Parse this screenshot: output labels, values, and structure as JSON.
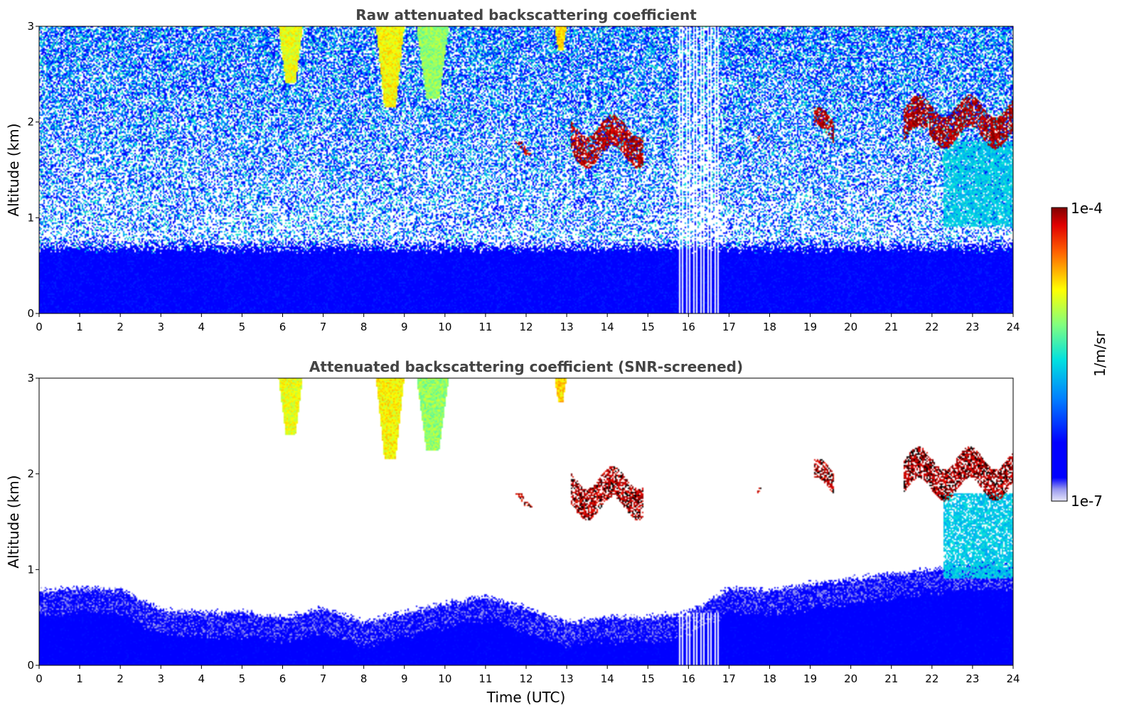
{
  "chart_data": [
    {
      "type": "heatmap",
      "title": "Raw attenuated backscattering coefficient",
      "xlabel": "",
      "ylabel": "Altitude (km)",
      "xlim": [
        0,
        24
      ],
      "ylim": [
        0,
        3
      ],
      "xticks": [
        "0",
        "1",
        "2",
        "3",
        "4",
        "5",
        "6",
        "7",
        "8",
        "9",
        "10",
        "11",
        "12",
        "13",
        "14",
        "15",
        "16",
        "17",
        "18",
        "19",
        "20",
        "21",
        "22",
        "23",
        "24"
      ],
      "yticks": [
        "0",
        "1",
        "2",
        "3"
      ],
      "grid": false,
      "screened": false,
      "features": [
        {
          "kind": "boundary_layer",
          "x": [
            0,
            24
          ],
          "top": 0.7,
          "level": 0.15
        },
        {
          "kind": "noise_field",
          "x": [
            0,
            24
          ],
          "y": [
            0.7,
            3.0
          ],
          "level": 0.3
        },
        {
          "kind": "plume",
          "x": [
            5.9,
            6.5
          ],
          "y": [
            2.4,
            3.0
          ],
          "level": 0.7
        },
        {
          "kind": "plume",
          "x": [
            8.3,
            9.0
          ],
          "y": [
            2.15,
            3.0
          ],
          "level": 0.72
        },
        {
          "kind": "plume",
          "x": [
            9.3,
            10.1
          ],
          "y": [
            2.25,
            3.0
          ],
          "level": 0.62
        },
        {
          "kind": "plume",
          "x": [
            12.7,
            13.0
          ],
          "y": [
            2.75,
            3.0
          ],
          "level": 0.75
        },
        {
          "kind": "cloud",
          "x": [
            11.5,
            12.3
          ],
          "y": [
            1.65,
            1.8
          ],
          "level": 0.95
        },
        {
          "kind": "cloud",
          "x": [
            13.1,
            14.9
          ],
          "y": [
            1.5,
            2.1
          ],
          "level": 0.97
        },
        {
          "kind": "cloud",
          "x": [
            17.7,
            17.8
          ],
          "y": [
            1.7,
            1.85
          ],
          "level": 0.95
        },
        {
          "kind": "cloud",
          "x": [
            19.1,
            19.6
          ],
          "y": [
            1.75,
            2.15
          ],
          "level": 0.97
        },
        {
          "kind": "cloud",
          "x": [
            21.3,
            24.0
          ],
          "y": [
            1.7,
            2.3
          ],
          "level": 0.98
        },
        {
          "kind": "virga",
          "x": [
            22.3,
            24.0
          ],
          "y": [
            0.9,
            1.8
          ],
          "level": 0.45
        },
        {
          "kind": "data_gap",
          "x": [
            15.75,
            16.75
          ],
          "y": [
            0.0,
            3.0
          ],
          "level": 0
        }
      ]
    },
    {
      "type": "heatmap",
      "title": "Attenuated backscattering coefficient (SNR-screened)",
      "xlabel": "Time (UTC)",
      "ylabel": "Altitude (km)",
      "xlim": [
        0,
        24
      ],
      "ylim": [
        0,
        3
      ],
      "xticks": [
        "0",
        "1",
        "2",
        "3",
        "4",
        "5",
        "6",
        "7",
        "8",
        "9",
        "10",
        "11",
        "12",
        "13",
        "14",
        "15",
        "16",
        "17",
        "18",
        "19",
        "20",
        "21",
        "22",
        "23",
        "24"
      ],
      "yticks": [
        "0",
        "1",
        "2",
        "3"
      ],
      "grid": false,
      "screened": true,
      "boundary_layer_top_km": [
        [
          0,
          0.78
        ],
        [
          1,
          0.8
        ],
        [
          2,
          0.8
        ],
        [
          3,
          0.58
        ],
        [
          4,
          0.55
        ],
        [
          5,
          0.55
        ],
        [
          6,
          0.5
        ],
        [
          7,
          0.6
        ],
        [
          8,
          0.45
        ],
        [
          9,
          0.55
        ],
        [
          10,
          0.65
        ],
        [
          11,
          0.72
        ],
        [
          12,
          0.6
        ],
        [
          13,
          0.45
        ],
        [
          14,
          0.5
        ],
        [
          15,
          0.5
        ],
        [
          16,
          0.55
        ],
        [
          17,
          0.8
        ],
        [
          18,
          0.78
        ],
        [
          19,
          0.85
        ],
        [
          20,
          0.9
        ],
        [
          21,
          0.95
        ],
        [
          22,
          1.0
        ],
        [
          23,
          1.05
        ],
        [
          24,
          1.05
        ]
      ],
      "features": [
        {
          "kind": "plume",
          "x": [
            5.9,
            6.5
          ],
          "y": [
            2.4,
            3.0
          ],
          "level": 0.7
        },
        {
          "kind": "plume",
          "x": [
            8.3,
            9.0
          ],
          "y": [
            2.15,
            3.0
          ],
          "level": 0.72
        },
        {
          "kind": "plume",
          "x": [
            9.3,
            10.1
          ],
          "y": [
            2.25,
            3.0
          ],
          "level": 0.62
        },
        {
          "kind": "plume",
          "x": [
            12.7,
            13.0
          ],
          "y": [
            2.75,
            3.0
          ],
          "level": 0.75
        },
        {
          "kind": "cloud",
          "x": [
            11.5,
            12.3
          ],
          "y": [
            1.65,
            1.8
          ],
          "level": 0.95
        },
        {
          "kind": "cloud",
          "x": [
            13.1,
            14.9
          ],
          "y": [
            1.5,
            2.1
          ],
          "level": 0.97
        },
        {
          "kind": "cloud",
          "x": [
            17.7,
            17.8
          ],
          "y": [
            1.7,
            1.85
          ],
          "level": 0.95
        },
        {
          "kind": "cloud",
          "x": [
            19.1,
            19.6
          ],
          "y": [
            1.75,
            2.15
          ],
          "level": 0.97
        },
        {
          "kind": "cloud",
          "x": [
            21.3,
            24.0
          ],
          "y": [
            1.7,
            2.3
          ],
          "level": 0.98
        },
        {
          "kind": "virga",
          "x": [
            22.3,
            24.0
          ],
          "y": [
            0.9,
            1.8
          ],
          "level": 0.45
        },
        {
          "kind": "data_gap",
          "x": [
            15.75,
            16.75
          ],
          "y": [
            0.0,
            0.55
          ],
          "level": 0
        }
      ]
    }
  ],
  "colorbar": {
    "label": "1/m/sr",
    "min_label": "1e-7",
    "max_label": "1e-4",
    "scale": "log",
    "colormap": "jet",
    "low_end_color": "#e6e6fa"
  }
}
